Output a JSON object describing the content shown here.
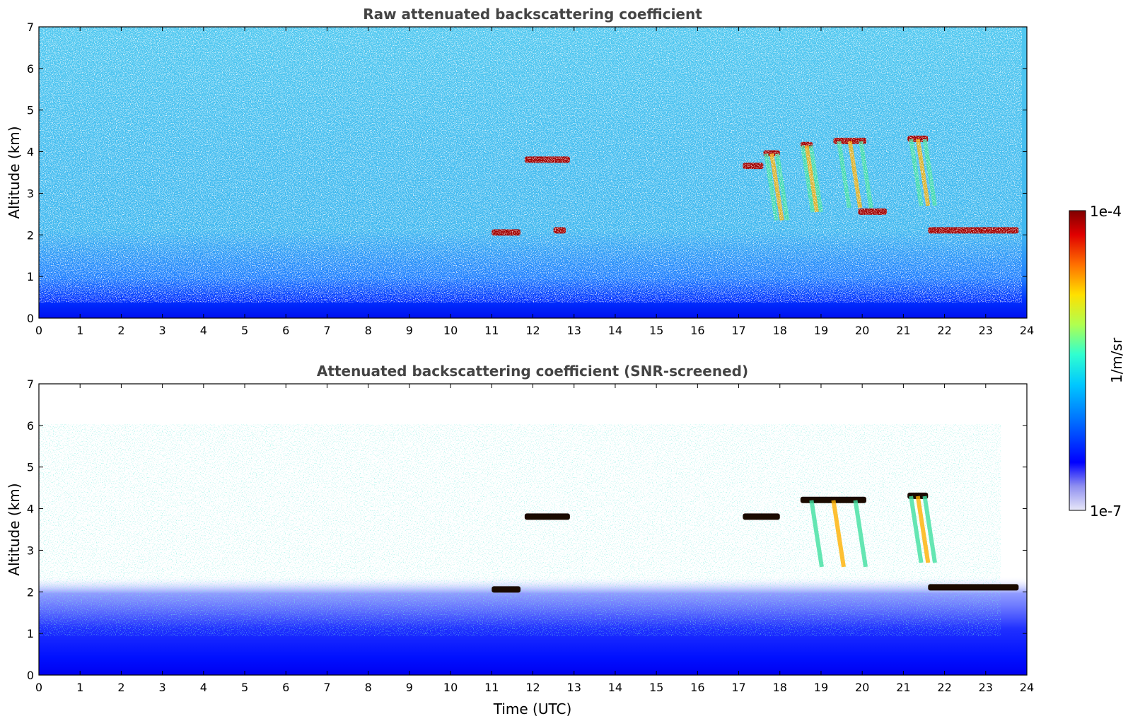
{
  "colors": {
    "background": "#ffffff",
    "title_text": "#444444",
    "colormap_jet": [
      "#e8e8f8",
      "#0000ff",
      "#0080ff",
      "#00d0ff",
      "#40ffc0",
      "#c0ff40",
      "#ffd000",
      "#ff6000",
      "#e00000",
      "#800000"
    ]
  },
  "colorbar": {
    "max_label": "1e-4",
    "min_label": "1e-7",
    "unit_label": "1/m/sr",
    "scale": "log",
    "range": [
      1e-07,
      0.0001
    ]
  },
  "chart_data": [
    {
      "type": "heatmap",
      "title": "Raw attenuated backscattering coefficient",
      "xlabel": "",
      "ylabel": "Altitude (km)",
      "xlim": [
        0,
        24
      ],
      "ylim": [
        0,
        7
      ],
      "xticks": [
        "0",
        "1",
        "2",
        "3",
        "4",
        "5",
        "6",
        "7",
        "8",
        "9",
        "10",
        "11",
        "12",
        "13",
        "14",
        "15",
        "16",
        "17",
        "18",
        "19",
        "20",
        "21",
        "22",
        "23",
        "24"
      ],
      "yticks": [
        "0",
        "1",
        "2",
        "3",
        "4",
        "5",
        "6",
        "7"
      ],
      "grid": false,
      "colorscale": "jet, log",
      "features": [
        {
          "kind": "cloud_layer",
          "t_start": 11.8,
          "t_end": 12.9,
          "alt": 3.8
        },
        {
          "kind": "cloud_layer",
          "t_start": 11.0,
          "t_end": 11.7,
          "alt": 2.05
        },
        {
          "kind": "cloud_layer",
          "t_start": 12.5,
          "t_end": 12.8,
          "alt": 2.1
        },
        {
          "kind": "cloud_layer",
          "t_start": 17.1,
          "t_end": 17.6,
          "alt": 3.65
        },
        {
          "kind": "cloud_layer",
          "t_start": 17.6,
          "t_end": 18.0,
          "alt": 3.95
        },
        {
          "kind": "cloud_layer",
          "t_start": 18.5,
          "t_end": 18.8,
          "alt": 4.15
        },
        {
          "kind": "cloud_layer",
          "t_start": 19.3,
          "t_end": 20.1,
          "alt": 4.25
        },
        {
          "kind": "cloud_layer",
          "t_start": 21.1,
          "t_end": 21.6,
          "alt": 4.3
        },
        {
          "kind": "cloud_layer",
          "t_start": 21.6,
          "t_end": 23.8,
          "alt": 2.1
        },
        {
          "kind": "cloud_layer",
          "t_start": 19.9,
          "t_end": 20.6,
          "alt": 2.55
        }
      ]
    },
    {
      "type": "heatmap",
      "title": "Attenuated backscattering coefficient (SNR-screened)",
      "xlabel": "Time (UTC)",
      "ylabel": "Altitude (km)",
      "xlim": [
        0,
        24
      ],
      "ylim": [
        0,
        7
      ],
      "xticks": [
        "0",
        "1",
        "2",
        "3",
        "4",
        "5",
        "6",
        "7",
        "8",
        "9",
        "10",
        "11",
        "12",
        "13",
        "14",
        "15",
        "16",
        "17",
        "18",
        "19",
        "20",
        "21",
        "22",
        "23",
        "24"
      ],
      "yticks": [
        "0",
        "1",
        "2",
        "3",
        "4",
        "5",
        "6",
        "7"
      ],
      "grid": false,
      "colorscale": "jet, log",
      "features": [
        {
          "kind": "cloud_layer",
          "t_start": 11.8,
          "t_end": 12.9,
          "alt": 3.8
        },
        {
          "kind": "cloud_layer",
          "t_start": 11.0,
          "t_end": 11.7,
          "alt": 2.05
        },
        {
          "kind": "cloud_layer",
          "t_start": 17.1,
          "t_end": 18.0,
          "alt": 3.8
        },
        {
          "kind": "cloud_layer",
          "t_start": 18.5,
          "t_end": 20.1,
          "alt": 4.2
        },
        {
          "kind": "cloud_layer",
          "t_start": 21.1,
          "t_end": 21.6,
          "alt": 4.3
        },
        {
          "kind": "cloud_layer",
          "t_start": 21.6,
          "t_end": 23.8,
          "alt": 2.1
        }
      ]
    }
  ]
}
